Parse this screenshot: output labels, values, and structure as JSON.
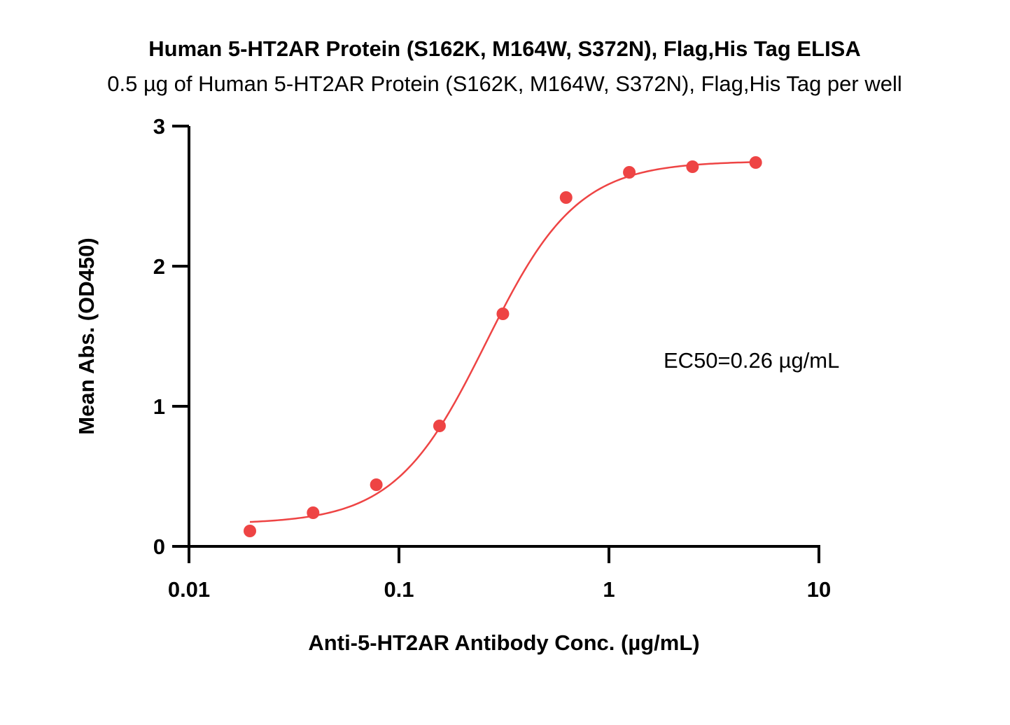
{
  "chart_data": {
    "type": "scatter",
    "title": "Human 5-HT2AR Protein (S162K, M164W, S372N), Flag,His Tag ELISA",
    "subtitle": "0.5 µg of Human 5-HT2AR Protein (S162K, M164W, S372N), Flag,His Tag per well",
    "xlabel": "Anti-5-HT2AR Antibody Conc. (µg/mL)",
    "ylabel": "Mean Abs. (OD450)",
    "x_scale": "log",
    "xlim": [
      0.01,
      10
    ],
    "ylim": [
      0,
      3
    ],
    "x_ticks": [
      {
        "value": 0.01,
        "label": "0.01"
      },
      {
        "value": 0.1,
        "label": "0.1"
      },
      {
        "value": 1,
        "label": "1"
      },
      {
        "value": 10,
        "label": "10"
      }
    ],
    "y_ticks": [
      {
        "value": 0,
        "label": "0"
      },
      {
        "value": 1,
        "label": "1"
      },
      {
        "value": 2,
        "label": "2"
      },
      {
        "value": 3,
        "label": "3"
      }
    ],
    "grid": false,
    "legend": "none",
    "color": "#EE4444",
    "points": [
      {
        "x": 0.0195,
        "y": 0.11
      },
      {
        "x": 0.039,
        "y": 0.24
      },
      {
        "x": 0.078,
        "y": 0.44
      },
      {
        "x": 0.156,
        "y": 0.86
      },
      {
        "x": 0.3125,
        "y": 1.66
      },
      {
        "x": 0.625,
        "y": 2.49
      },
      {
        "x": 1.25,
        "y": 2.67
      },
      {
        "x": 2.5,
        "y": 2.71
      },
      {
        "x": 5,
        "y": 2.74
      }
    ],
    "fit_curve": {
      "model": "4PL",
      "bottom": 0.16,
      "top": 2.75,
      "ec50": 0.26,
      "hill": 2.0,
      "x_range": [
        0.0195,
        5
      ]
    },
    "annotation": "EC50=0.26 µg/mL"
  }
}
